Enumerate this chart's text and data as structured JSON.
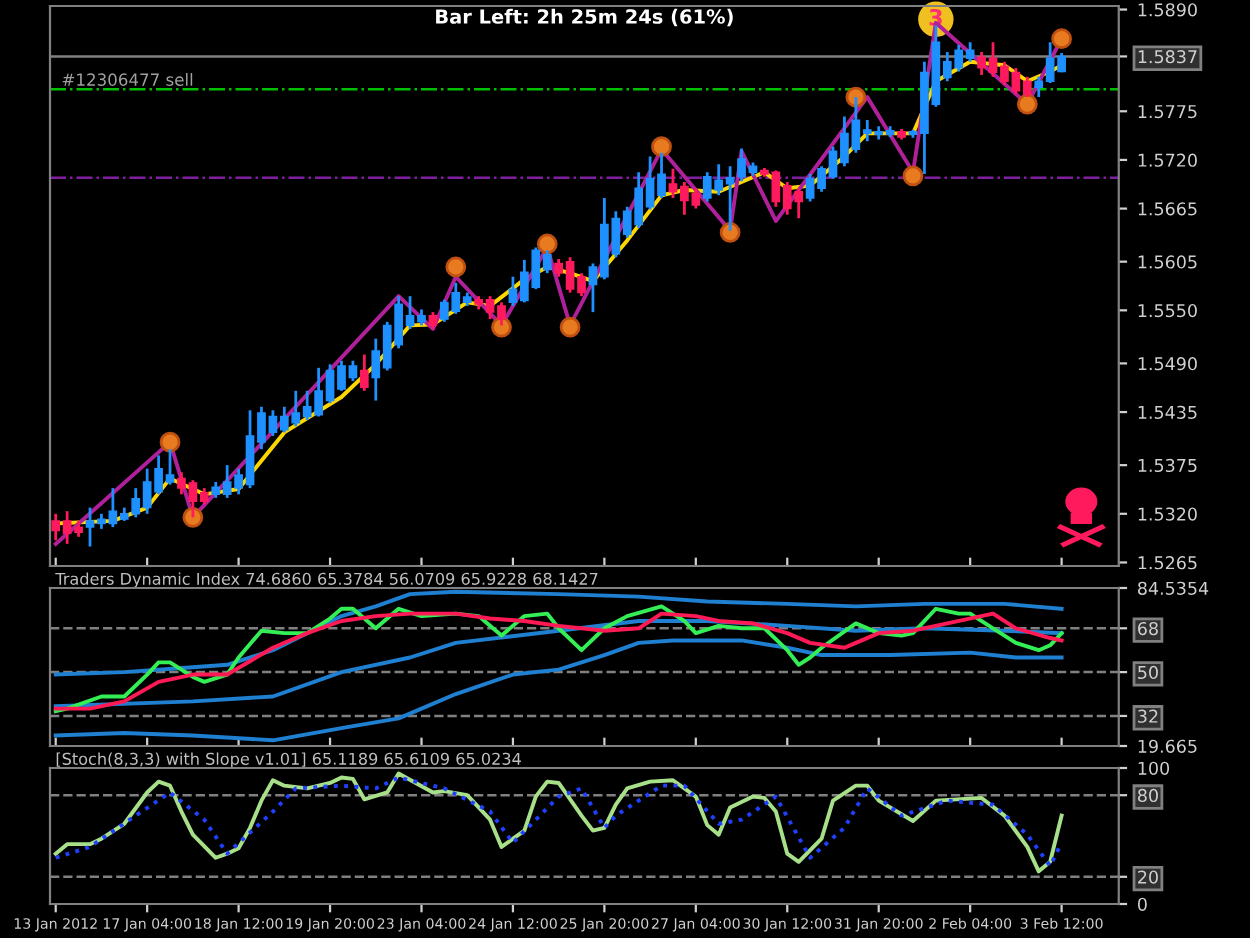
{
  "chart_data": [
    {
      "type": "candlestick",
      "title": "Bar Left: 2h 25m 24s (61%)",
      "ohlc": [
        [
          1.5312,
          1.532,
          1.529,
          1.5301
        ],
        [
          1.5312,
          1.5323,
          1.5286,
          1.5298
        ],
        [
          1.5305,
          1.5312,
          1.5294,
          1.5299
        ],
        [
          1.5305,
          1.5327,
          1.5283,
          1.5312
        ],
        [
          1.5309,
          1.532,
          1.5303,
          1.5314
        ],
        [
          1.5309,
          1.5349,
          1.5305,
          1.5323
        ],
        [
          1.5314,
          1.5327,
          1.5312,
          1.532
        ],
        [
          1.532,
          1.5349,
          1.5316,
          1.5337
        ],
        [
          1.5327,
          1.5371,
          1.532,
          1.5356
        ],
        [
          1.5345,
          1.5386,
          1.5342,
          1.5371
        ],
        [
          1.5356,
          1.5393,
          1.5353,
          1.5364
        ],
        [
          1.536,
          1.5367,
          1.5342,
          1.5349
        ],
        [
          1.5355,
          1.5358,
          1.5316,
          1.5334
        ],
        [
          1.5344,
          1.5349,
          1.5331,
          1.5334
        ],
        [
          1.5342,
          1.5356,
          1.5338,
          1.535
        ],
        [
          1.5342,
          1.5375,
          1.5338,
          1.5356
        ],
        [
          1.5349,
          1.5371,
          1.5342,
          1.5364
        ],
        [
          1.5353,
          1.5437,
          1.5349,
          1.5408
        ],
        [
          1.5401,
          1.5441,
          1.5393,
          1.5434
        ],
        [
          1.5412,
          1.5437,
          1.5408,
          1.543
        ],
        [
          1.5415,
          1.5441,
          1.5412,
          1.543
        ],
        [
          1.5423,
          1.5459,
          1.5419,
          1.5434
        ],
        [
          1.543,
          1.5459,
          1.5426,
          1.5441
        ],
        [
          1.5432,
          1.5485,
          1.543,
          1.5459
        ],
        [
          1.5448,
          1.5489,
          1.5445,
          1.5482
        ],
        [
          1.5461,
          1.5493,
          1.5459,
          1.5487
        ],
        [
          1.5474,
          1.5493,
          1.547,
          1.5487
        ],
        [
          1.5482,
          1.55,
          1.5459,
          1.5463
        ],
        [
          1.5474,
          1.5518,
          1.5448,
          1.5504
        ],
        [
          1.5485,
          1.5537,
          1.5482,
          1.5533
        ],
        [
          1.5511,
          1.5566,
          1.5507,
          1.5557
        ],
        [
          1.5533,
          1.5566,
          1.5529,
          1.5544
        ],
        [
          1.5537,
          1.5551,
          1.5533,
          1.5544
        ],
        [
          1.5544,
          1.5548,
          1.5529,
          1.5533
        ],
        [
          1.554,
          1.5562,
          1.5537,
          1.5559
        ],
        [
          1.5549,
          1.5581,
          1.5546,
          1.557
        ],
        [
          1.5559,
          1.557,
          1.5555,
          1.5565
        ],
        [
          1.5562,
          1.5566,
          1.5551,
          1.5557
        ],
        [
          1.5562,
          1.5566,
          1.554,
          1.5548
        ],
        [
          1.5555,
          1.5559,
          1.5533,
          1.554
        ],
        [
          1.5559,
          1.5588,
          1.5555,
          1.5574
        ],
        [
          1.5561,
          1.5607,
          1.5559,
          1.5593
        ],
        [
          1.5576,
          1.5621,
          1.5574,
          1.5618
        ],
        [
          1.5596,
          1.5618,
          1.5592,
          1.5613
        ],
        [
          1.5603,
          1.5608,
          1.5588,
          1.5592
        ],
        [
          1.5605,
          1.561,
          1.557,
          1.5574
        ],
        [
          1.5588,
          1.5592,
          1.5566,
          1.557
        ],
        [
          1.5579,
          1.5603,
          1.5548,
          1.5599
        ],
        [
          1.5588,
          1.5677,
          1.5585,
          1.5647
        ],
        [
          1.5614,
          1.5662,
          1.561,
          1.5654
        ],
        [
          1.5636,
          1.5667,
          1.5632,
          1.5662
        ],
        [
          1.5647,
          1.5706,
          1.5643,
          1.5688
        ],
        [
          1.5667,
          1.5724,
          1.5664,
          1.5699
        ],
        [
          1.568,
          1.5728,
          1.5677,
          1.5704
        ],
        [
          1.5693,
          1.571,
          1.5677,
          1.5684
        ],
        [
          1.569,
          1.5695,
          1.5658,
          1.5674
        ],
        [
          1.5682,
          1.5688,
          1.5665,
          1.5669
        ],
        [
          1.5677,
          1.5706,
          1.5673,
          1.5701
        ],
        [
          1.5686,
          1.5715,
          1.568,
          1.5697
        ],
        [
          1.5693,
          1.5713,
          1.564,
          1.57
        ],
        [
          1.5701,
          1.5733,
          1.5696,
          1.5721
        ],
        [
          1.5706,
          1.5717,
          1.5702,
          1.5713
        ],
        [
          1.5708,
          1.5711,
          1.5701,
          1.5704
        ],
        [
          1.5706,
          1.5708,
          1.5667,
          1.5673
        ],
        [
          1.5691,
          1.5695,
          1.5658,
          1.5665
        ],
        [
          1.5684,
          1.5688,
          1.5654,
          1.5673
        ],
        [
          1.5677,
          1.5704,
          1.5673,
          1.5699
        ],
        [
          1.5688,
          1.5713,
          1.5684,
          1.571
        ],
        [
          1.5701,
          1.5735,
          1.5699,
          1.573
        ],
        [
          1.5717,
          1.5769,
          1.5713,
          1.575
        ],
        [
          1.5732,
          1.5791,
          1.5728,
          1.5765
        ],
        [
          1.575,
          1.5765,
          1.5741,
          1.5754
        ],
        [
          1.5749,
          1.5758,
          1.5743,
          1.5752
        ],
        [
          1.5749,
          1.5758,
          1.5746,
          1.5753
        ],
        [
          1.5752,
          1.5755,
          1.5743,
          1.5746
        ],
        [
          1.5749,
          1.5754,
          1.5745,
          1.5752
        ],
        [
          1.575,
          1.5831,
          1.5704,
          1.5819
        ],
        [
          1.5783,
          1.5872,
          1.578,
          1.5853
        ],
        [
          1.5813,
          1.5842,
          1.5809,
          1.5831
        ],
        [
          1.5824,
          1.585,
          1.582,
          1.5844
        ],
        [
          1.5835,
          1.5853,
          1.5831,
          1.5844
        ],
        [
          1.5836,
          1.5842,
          1.5816,
          1.5824
        ],
        [
          1.5835,
          1.5853,
          1.5814,
          1.5819
        ],
        [
          1.5826,
          1.5831,
          1.5805,
          1.5809
        ],
        [
          1.5819,
          1.5824,
          1.5794,
          1.5798
        ],
        [
          1.5809,
          1.5814,
          1.5791,
          1.5794
        ],
        [
          1.5802,
          1.5814,
          1.5791,
          1.5809
        ],
        [
          1.5809,
          1.5853,
          1.5807,
          1.5835
        ],
        [
          1.582,
          1.5841,
          1.5819,
          1.5837
        ]
      ],
      "colors": [
        "#ff1a5e",
        "#ff1a5e",
        "#ff1a5e",
        "#1e90ff",
        "#1e90ff",
        "#1e90ff",
        "#1e90ff",
        "#1e90ff",
        "#1e90ff",
        "#1e90ff",
        "#1e90ff",
        "#ff1a5e",
        "#ff1a5e",
        "#ff1a5e",
        "#1e90ff",
        "#1e90ff",
        "#1e90ff",
        "#1e90ff",
        "#1e90ff",
        "#1e90ff",
        "#1e90ff",
        "#1e90ff",
        "#1e90ff",
        "#1e90ff",
        "#1e90ff",
        "#1e90ff",
        "#1e90ff",
        "#ff1a5e",
        "#1e90ff",
        "#1e90ff",
        "#1e90ff",
        "#1e90ff",
        "#1e90ff",
        "#ff1a5e",
        "#1e90ff",
        "#1e90ff",
        "#1e90ff",
        "#ff1a5e",
        "#ff1a5e",
        "#ff1a5e",
        "#1e90ff",
        "#1e90ff",
        "#1e90ff",
        "#1e90ff",
        "#ff1a5e",
        "#ff1a5e",
        "#ff1a5e",
        "#1e90ff",
        "#1e90ff",
        "#1e90ff",
        "#1e90ff",
        "#1e90ff",
        "#1e90ff",
        "#1e90ff",
        "#ff1a5e",
        "#ff1a5e",
        "#ff1a5e",
        "#1e90ff",
        "#1e90ff",
        "#1e90ff",
        "#1e90ff",
        "#1e90ff",
        "#ff1a5e",
        "#ff1a5e",
        "#ff1a5e",
        "#ff1a5e",
        "#1e90ff",
        "#1e90ff",
        "#1e90ff",
        "#1e90ff",
        "#1e90ff",
        "#1e90ff",
        "#1e90ff",
        "#1e90ff",
        "#ff1a5e",
        "#1e90ff",
        "#1e90ff",
        "#1e90ff",
        "#1e90ff",
        "#1e90ff",
        "#1e90ff",
        "#ff1a5e",
        "#ff1a5e",
        "#ff1a5e",
        "#ff1a5e",
        "#ff1a5e",
        "#1e90ff",
        "#1e90ff",
        "#1e90ff"
      ],
      "series": [
        {
          "type": "line",
          "color": "#ffd700",
          "values": [
            1.5309,
            null,
            null,
            null,
            null,
            1.5312,
            null,
            null,
            1.5327,
            null,
            1.536,
            null,
            null,
            1.5342,
            null,
            null,
            1.5348,
            null,
            null,
            null,
            1.5412,
            null,
            null,
            null,
            null,
            1.5452,
            null,
            null,
            1.5489,
            null,
            null,
            1.5533,
            null,
            1.5534,
            null,
            null,
            1.5559,
            null,
            1.5555,
            null,
            null,
            1.5585,
            null,
            1.5599,
            null,
            1.5592,
            null,
            1.5583,
            null,
            null,
            1.5629,
            null,
            null,
            1.568,
            null,
            1.5686,
            null,
            null,
            1.5684,
            null,
            1.5695,
            null,
            1.5706,
            null,
            1.5688,
            null,
            1.5691,
            null,
            null,
            1.5724,
            null,
            1.575,
            null,
            null,
            null,
            1.575,
            null,
            1.5809,
            null,
            null,
            1.5831,
            null,
            null,
            1.5827,
            null,
            1.5809,
            null,
            1.582,
            1.5827
          ]
        },
        {
          "type": "line",
          "color": "#b0209a",
          "values": [
            1.5286,
            null,
            null,
            null,
            null,
            null,
            null,
            null,
            null,
            null,
            1.5401,
            null,
            1.5316,
            null,
            null,
            null,
            null,
            null,
            null,
            null,
            null,
            null,
            null,
            null,
            null,
            null,
            null,
            null,
            null,
            null,
            1.5566,
            null,
            null,
            1.5529,
            null,
            1.5588,
            null,
            null,
            null,
            1.5533,
            null,
            null,
            null,
            1.5621,
            null,
            1.5533,
            null,
            null,
            null,
            null,
            null,
            null,
            null,
            1.5732,
            null,
            null,
            null,
            null,
            null,
            1.564,
            1.573,
            null,
            null,
            1.5651,
            null,
            null,
            null,
            null,
            null,
            null,
            null,
            1.5791,
            null,
            null,
            null,
            1.5706,
            null,
            1.5875,
            null,
            null,
            null,
            null,
            null,
            null,
            null,
            1.5783,
            null,
            null,
            1.5857
          ]
        },
        {
          "type": "scatter",
          "color": "#e87a20",
          "marker": "circle",
          "values": [
            null,
            null,
            null,
            null,
            null,
            null,
            null,
            null,
            null,
            null,
            1.5401,
            null,
            1.5316,
            null,
            null,
            null,
            null,
            null,
            null,
            null,
            null,
            null,
            null,
            null,
            null,
            null,
            null,
            null,
            null,
            null,
            null,
            null,
            null,
            null,
            null,
            1.5599,
            null,
            null,
            null,
            1.5531,
            null,
            null,
            null,
            1.5625,
            null,
            1.5531,
            null,
            null,
            null,
            null,
            null,
            null,
            null,
            1.5735,
            null,
            null,
            null,
            null,
            null,
            1.5638,
            null,
            null,
            null,
            null,
            null,
            null,
            null,
            null,
            null,
            null,
            1.5791,
            null,
            null,
            null,
            null,
            1.5702,
            null,
            null,
            null,
            null,
            null,
            null,
            null,
            null,
            null,
            1.5783,
            null,
            null,
            1.5857
          ]
        }
      ],
      "annotations": [
        {
          "text": "3",
          "y": 1.5879
        }
      ],
      "ref_lines": [
        {
          "axis": "y",
          "value": 1.5837,
          "color": "#808080",
          "line_style": "solid"
        },
        {
          "axis": "y",
          "value": 1.58,
          "label": "#12306477 sell",
          "color": "#00c000",
          "line_style": "dashdot"
        },
        {
          "axis": "y",
          "value": 1.57,
          "color": "#8020a0",
          "line_style": "dashdot"
        }
      ],
      "ylim": [
        1.5261,
        1.5894
      ],
      "yticks": [
        {
          "value": 1.589,
          "label": "1.5890"
        },
        {
          "value": 1.5837,
          "label": "1.5837"
        },
        {
          "value": 1.5775,
          "label": "1.5775"
        },
        {
          "value": 1.572,
          "label": "1.5720"
        },
        {
          "value": 1.5665,
          "label": "1.5665"
        },
        {
          "value": 1.5605,
          "label": "1.5605"
        },
        {
          "value": 1.555,
          "label": "1.5550"
        },
        {
          "value": 1.549,
          "label": "1.5490"
        },
        {
          "value": 1.5435,
          "label": "1.5435"
        },
        {
          "value": 1.5375,
          "label": "1.5375"
        },
        {
          "value": 1.532,
          "label": "1.5320"
        },
        {
          "value": 1.5265,
          "label": "1.5265"
        }
      ],
      "tick_labels": "y"
    },
    {
      "type": "line",
      "title": "Traders Dynamic Index 74.6860 65.3784 56.0709 65.9228 68.1427",
      "series": [
        {
          "color": "#1f7fd0",
          "values": [
            49,
            null,
            null,
            null,
            null,
            null,
            50,
            null,
            null,
            null,
            null,
            null,
            52,
            null,
            null,
            53,
            null,
            null,
            null,
            59,
            null,
            null,
            66,
            null,
            null,
            73,
            null,
            null,
            77,
            null,
            null,
            82,
            null,
            null,
            null,
            83,
            null,
            null,
            null,
            null,
            null,
            null,
            null,
            null,
            82,
            null,
            null,
            null,
            null,
            null,
            null,
            81,
            null,
            null,
            null,
            null,
            null,
            79,
            null,
            null,
            null,
            null,
            null,
            null,
            78,
            null,
            null,
            null,
            null,
            null,
            77,
            null,
            null,
            null,
            null,
            null,
            78,
            null,
            null,
            null,
            null,
            null,
            null,
            78,
            null,
            null,
            null,
            null,
            76
          ]
        },
        {
          "color": "#1f7fd0",
          "values": [
            36,
            null,
            null,
            null,
            null,
            null,
            null,
            null,
            null,
            null,
            null,
            null,
            38,
            null,
            null,
            null,
            null,
            null,
            null,
            40,
            null,
            null,
            null,
            null,
            null,
            50,
            null,
            null,
            null,
            null,
            null,
            56,
            null,
            null,
            null,
            62,
            null,
            null,
            null,
            null,
            null,
            null,
            null,
            null,
            67,
            null,
            null,
            null,
            null,
            null,
            null,
            71,
            null,
            null,
            null,
            null,
            null,
            71,
            null,
            null,
            null,
            null,
            null,
            null,
            69,
            null,
            null,
            null,
            null,
            null,
            67,
            null,
            null,
            null,
            null,
            null,
            68,
            null,
            null,
            null,
            null,
            null,
            null,
            67,
            null,
            null,
            null,
            null,
            66
          ]
        },
        {
          "color": "#1f7fd0",
          "values": [
            24,
            null,
            null,
            null,
            null,
            null,
            25,
            null,
            null,
            null,
            null,
            null,
            24,
            null,
            null,
            null,
            null,
            null,
            null,
            22,
            null,
            null,
            null,
            null,
            null,
            27,
            null,
            null,
            null,
            null,
            31,
            null,
            null,
            null,
            null,
            41,
            null,
            null,
            null,
            null,
            49,
            null,
            null,
            null,
            51,
            null,
            null,
            null,
            57,
            null,
            null,
            62,
            null,
            null,
            63,
            null,
            null,
            null,
            null,
            null,
            63,
            null,
            null,
            null,
            60,
            null,
            null,
            57,
            null,
            null,
            null,
            null,
            null,
            57,
            null,
            null,
            null,
            null,
            null,
            null,
            58,
            null,
            null,
            null,
            56,
            null,
            null,
            null,
            56
          ]
        },
        {
          "color": "#33ee55",
          "values": [
            34,
            35,
            null,
            null,
            40,
            null,
            40,
            null,
            49,
            54,
            54,
            null,
            48,
            46,
            null,
            49,
            56,
            null,
            67,
            null,
            66,
            null,
            66,
            null,
            72,
            76,
            76,
            null,
            68,
            null,
            76,
            null,
            73,
            null,
            null,
            74,
            null,
            73,
            null,
            65,
            null,
            73,
            null,
            74,
            68,
            null,
            59,
            null,
            68,
            null,
            73,
            null,
            null,
            77,
            null,
            71,
            66,
            null,
            69,
            null,
            68,
            null,
            68,
            null,
            59,
            53,
            56,
            60,
            null,
            null,
            70,
            null,
            66,
            null,
            65,
            66,
            null,
            76,
            null,
            74,
            74,
            null,
            68,
            null,
            62,
            null,
            59,
            61,
            66
          ]
        },
        {
          "color": "#ff1a55",
          "values": [
            35,
            null,
            null,
            35,
            null,
            null,
            38,
            null,
            null,
            46,
            null,
            null,
            49,
            null,
            null,
            49,
            null,
            null,
            null,
            60,
            null,
            null,
            66,
            null,
            null,
            71,
            null,
            null,
            73,
            null,
            null,
            74,
            null,
            null,
            null,
            74,
            null,
            null,
            72,
            null,
            null,
            71,
            null,
            null,
            69,
            null,
            null,
            null,
            67,
            null,
            null,
            68,
            null,
            74,
            null,
            null,
            73,
            null,
            71,
            null,
            null,
            70,
            null,
            null,
            66,
            null,
            62,
            null,
            null,
            60,
            62,
            null,
            66,
            null,
            null,
            67,
            null,
            null,
            70,
            null,
            null,
            null,
            74,
            null,
            68,
            null,
            null,
            64,
            63
          ]
        }
      ],
      "ref_lines": [
        {
          "axis": "y",
          "value": 68,
          "color": "#808080",
          "line_style": "dashed"
        },
        {
          "axis": "y",
          "value": 50,
          "color": "#808080",
          "line_style": "dashed"
        },
        {
          "axis": "y",
          "value": 32,
          "color": "#808080",
          "line_style": "dashed"
        }
      ],
      "ylim": [
        19.665,
        84.5354
      ],
      "yticks": [
        84.5354,
        68,
        50,
        32,
        19.665
      ],
      "tick_labels": "y"
    },
    {
      "type": "line",
      "title": "[Stoch(8,3,3) with Slope v1.01] 65.1189 65.6109 65.0234",
      "categories": [
        "13 Jan 2012",
        null,
        null,
        null,
        null,
        null,
        null,
        null,
        "17 Jan 04:00",
        null,
        null,
        null,
        null,
        null,
        null,
        null,
        "18 Jan 12:00",
        null,
        null,
        null,
        null,
        null,
        null,
        null,
        "19 Jan 20:00",
        null,
        null,
        null,
        null,
        null,
        null,
        null,
        "23 Jan 04:00",
        null,
        null,
        null,
        null,
        null,
        null,
        null,
        "24 Jan 12:00",
        null,
        null,
        null,
        null,
        null,
        null,
        null,
        "25 Jan 20:00",
        null,
        null,
        null,
        null,
        null,
        null,
        null,
        "27 Jan 04:00",
        null,
        null,
        null,
        null,
        null,
        null,
        null,
        "30 Jan 12:00",
        null,
        null,
        null,
        null,
        null,
        null,
        null,
        "31 Jan 20:00",
        null,
        null,
        null,
        null,
        null,
        null,
        null,
        "2 Feb 04:00",
        null,
        null,
        null,
        null,
        null,
        null,
        null,
        "3 Feb 12:00"
      ],
      "series": [
        {
          "color": "#a8e08a",
          "values": [
            37,
            44,
            null,
            44,
            48,
            null,
            59,
            null,
            82,
            90,
            87,
            68,
            51,
            null,
            34,
            37,
            41,
            56,
            76,
            91,
            87,
            null,
            85,
            null,
            89,
            93,
            92,
            77,
            null,
            82,
            96,
            null,
            null,
            82,
            83,
            null,
            80,
            null,
            62,
            42,
            null,
            54,
            79,
            90,
            89,
            null,
            65,
            54,
            56,
            73,
            85,
            null,
            90,
            null,
            91,
            null,
            79,
            58,
            51,
            71,
            null,
            79,
            78,
            68,
            37,
            31,
            null,
            48,
            76,
            null,
            87,
            87,
            76,
            null,
            null,
            61,
            null,
            76,
            null,
            null,
            null,
            78,
            null,
            65,
            null,
            42,
            24,
            31,
            65
          ]
        },
        {
          "color": "#2040ff",
          "line_style": "dotted",
          "values": [
            34,
            null,
            null,
            42,
            null,
            null,
            null,
            65,
            null,
            null,
            82,
            null,
            null,
            62,
            null,
            37,
            null,
            null,
            null,
            68,
            null,
            85,
            null,
            null,
            null,
            87,
            null,
            null,
            85,
            null,
            93,
            null,
            null,
            null,
            85,
            null,
            null,
            null,
            68,
            null,
            45,
            null,
            null,
            null,
            79,
            null,
            85,
            null,
            56,
            65,
            null,
            null,
            null,
            87,
            null,
            87,
            null,
            null,
            59,
            null,
            62,
            null,
            null,
            79,
            null,
            null,
            34,
            null,
            null,
            56,
            null,
            85,
            null,
            null,
            65,
            null,
            null,
            null,
            76,
            null,
            null,
            null,
            73,
            null,
            null,
            51,
            null,
            28,
            45
          ]
        }
      ],
      "ref_lines": [
        {
          "axis": "y",
          "value": 80,
          "color": "#808080",
          "line_style": "dashed"
        },
        {
          "axis": "y",
          "value": 20,
          "color": "#808080",
          "line_style": "dashed"
        }
      ],
      "ylim": [
        0,
        100
      ],
      "yticks": [
        100,
        80,
        20,
        0
      ]
    }
  ]
}
